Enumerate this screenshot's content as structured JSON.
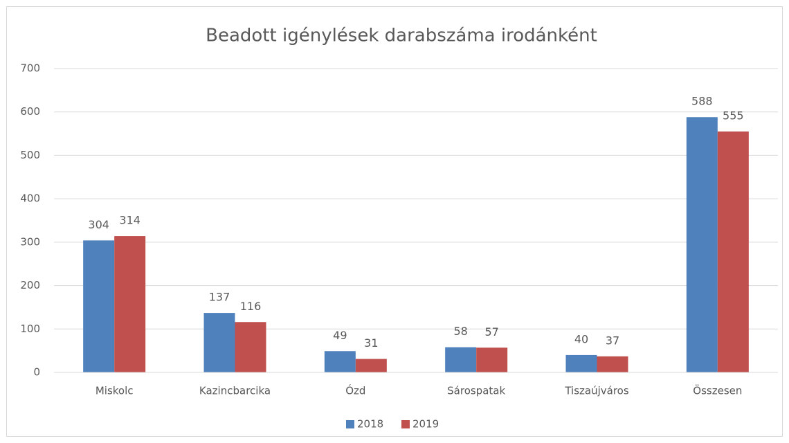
{
  "chart_data": {
    "type": "bar",
    "title": "Beadott igénylések darabszáma irodánként",
    "categories": [
      "Miskolc",
      "Kazincbarcika",
      "Ózd",
      "Sárospatak",
      "Tiszaújváros",
      "Összesen"
    ],
    "series": [
      {
        "name": "2018",
        "color": "#4f81bd",
        "values": [
          304,
          137,
          49,
          58,
          40,
          588
        ]
      },
      {
        "name": "2019",
        "color": "#c0504d",
        "values": [
          314,
          116,
          31,
          57,
          37,
          555
        ]
      }
    ],
    "ylim": [
      0,
      700
    ],
    "yticks": [
      0,
      100,
      200,
      300,
      400,
      500,
      600,
      700
    ],
    "grid": true,
    "legend": "bottom"
  }
}
